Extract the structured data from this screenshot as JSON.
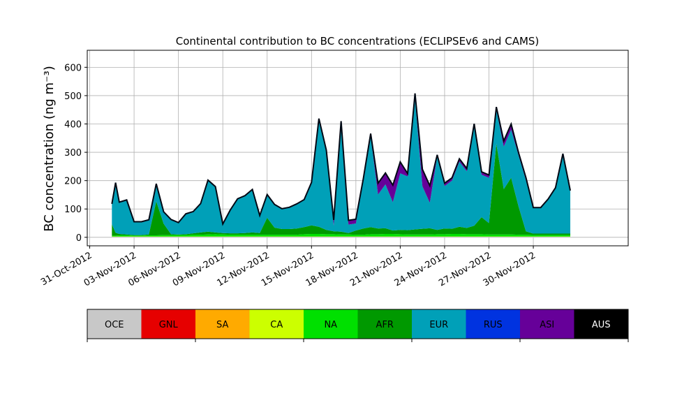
{
  "chart_data": {
    "type": "area",
    "stacked": true,
    "title": "Continental contribution to BC concentrations (ECLIPSEv6 and CAMS)",
    "ylabel": "BC concentration (ng m⁻³)",
    "xlabel": "",
    "grid": true,
    "legend_placement": "bottom colorbar",
    "ylim": [
      -30,
      660
    ],
    "xlim": [
      "2012-10-30T20:00",
      "2012-12-06T10:00"
    ],
    "y_ticks": [
      0,
      100,
      200,
      300,
      400,
      500,
      600
    ],
    "x_ticks": [
      "31-Oct-2012",
      "03-Nov-2012",
      "06-Nov-2012",
      "09-Nov-2012",
      "12-Nov-2012",
      "15-Nov-2012",
      "18-Nov-2012",
      "21-Nov-2012",
      "24-Nov-2012",
      "27-Nov-2012",
      "30-Nov-2012"
    ],
    "x": [
      "2012-11-01T12:00",
      "2012-11-01T18:00",
      "2012-11-02T00:00",
      "2012-11-02T12:00",
      "2012-11-03T00:00",
      "2012-11-03T12:00",
      "2012-11-04T00:00",
      "2012-11-04T12:00",
      "2012-11-05T00:00",
      "2012-11-05T12:00",
      "2012-11-06T00:00",
      "2012-11-06T12:00",
      "2012-11-07T00:00",
      "2012-11-07T12:00",
      "2012-11-08T00:00",
      "2012-11-08T12:00",
      "2012-11-09T00:00",
      "2012-11-09T12:00",
      "2012-11-10T00:00",
      "2012-11-10T12:00",
      "2012-11-11T00:00",
      "2012-11-11T12:00",
      "2012-11-12T00:00",
      "2012-11-12T12:00",
      "2012-11-13T00:00",
      "2012-11-13T12:00",
      "2012-11-14T00:00",
      "2012-11-14T12:00",
      "2012-11-15T00:00",
      "2012-11-15T12:00",
      "2012-11-16T00:00",
      "2012-11-16T12:00",
      "2012-11-17T00:00",
      "2012-11-17T12:00",
      "2012-11-18T00:00",
      "2012-11-18T12:00",
      "2012-11-19T00:00",
      "2012-11-19T12:00",
      "2012-11-20T00:00",
      "2012-11-20T12:00",
      "2012-11-21T00:00",
      "2012-11-21T12:00",
      "2012-11-22T00:00",
      "2012-11-22T12:00",
      "2012-11-23T00:00",
      "2012-11-23T12:00",
      "2012-11-24T00:00",
      "2012-11-24T12:00",
      "2012-11-25T00:00",
      "2012-11-25T12:00",
      "2012-11-26T00:00",
      "2012-11-26T12:00",
      "2012-11-27T00:00",
      "2012-11-27T12:00",
      "2012-11-28T00:00",
      "2012-11-28T12:00",
      "2012-11-29T00:00",
      "2012-11-29T12:00",
      "2012-11-30T00:00",
      "2012-11-30T12:00",
      "2012-12-01T00:00",
      "2012-12-01T12:00",
      "2012-12-02T00:00",
      "2012-12-02T12:00"
    ],
    "series": [
      {
        "name": "OCE",
        "color": "#c8c8c8",
        "values": [
          2,
          2,
          2,
          2,
          2,
          2,
          2,
          2,
          2,
          2,
          2,
          2,
          2,
          2,
          2,
          2,
          2,
          2,
          2,
          2,
          2,
          2,
          2,
          2,
          2,
          2,
          2,
          2,
          2,
          2,
          2,
          2,
          2,
          2,
          2,
          2,
          2,
          2,
          2,
          2,
          2,
          2,
          2,
          2,
          2,
          2,
          2,
          2,
          2,
          2,
          2,
          2,
          2,
          2,
          2,
          2,
          2,
          2,
          2,
          2,
          2,
          2,
          2,
          2
        ]
      },
      {
        "name": "GNL",
        "color": "#e60000",
        "values": [
          0,
          0,
          0,
          0,
          0,
          0,
          0,
          0,
          0,
          0,
          0,
          0,
          0,
          0,
          0,
          0,
          0,
          0,
          0,
          0,
          0,
          0,
          0,
          0,
          0,
          0,
          0,
          0,
          0,
          0,
          0,
          0,
          0,
          0,
          0,
          0,
          0,
          0,
          0,
          0,
          0,
          0,
          0,
          0,
          0,
          0,
          0,
          0,
          0,
          0,
          0,
          0,
          0,
          0,
          0,
          0,
          0,
          0,
          0,
          0,
          0,
          0,
          0,
          0
        ]
      },
      {
        "name": "SA",
        "color": "#ffaa00",
        "values": [
          0,
          0,
          0,
          0,
          0,
          0,
          0,
          0,
          0,
          0,
          0,
          0,
          0,
          0,
          0,
          0,
          0,
          0,
          0,
          0,
          0,
          0,
          0,
          0,
          0,
          0,
          0,
          0,
          0,
          0,
          0,
          0,
          0,
          0,
          0,
          0,
          0,
          0,
          0,
          0,
          0,
          0,
          0,
          0,
          0,
          0,
          0,
          0,
          0,
          0,
          0,
          0,
          0,
          0,
          0,
          0,
          0,
          0,
          0,
          0,
          0,
          0,
          0,
          0
        ]
      },
      {
        "name": "CA",
        "color": "#ccff00",
        "values": [
          1,
          1,
          1,
          1,
          1,
          1,
          1,
          1,
          1,
          1,
          1,
          1,
          1,
          1,
          1,
          1,
          1,
          1,
          1,
          1,
          1,
          1,
          1,
          1,
          1,
          1,
          1,
          1,
          1,
          1,
          1,
          1,
          1,
          1,
          1,
          1,
          1,
          1,
          1,
          1,
          1,
          1,
          1,
          1,
          1,
          1,
          1,
          1,
          1,
          1,
          1,
          1,
          1,
          1,
          1,
          1,
          1,
          1,
          1,
          1,
          1,
          1,
          1,
          1
        ]
      },
      {
        "name": "NA",
        "color": "#00e000",
        "values": [
          3,
          3,
          4,
          4,
          3,
          3,
          4,
          4,
          5,
          5,
          5,
          5,
          6,
          6,
          7,
          8,
          7,
          6,
          6,
          6,
          6,
          6,
          6,
          6,
          6,
          6,
          6,
          8,
          9,
          9,
          8,
          8,
          7,
          7,
          6,
          6,
          8,
          8,
          9,
          9,
          8,
          7,
          7,
          7,
          7,
          8,
          8,
          9,
          9,
          8,
          8,
          8,
          7,
          7,
          7,
          7,
          6,
          6,
          5,
          5,
          5,
          5,
          5,
          5
        ]
      },
      {
        "name": "AFR",
        "color": "#009900",
        "values": [
          40,
          10,
          5,
          3,
          2,
          2,
          3,
          120,
          40,
          3,
          2,
          3,
          5,
          8,
          10,
          6,
          5,
          5,
          5,
          6,
          8,
          6,
          60,
          25,
          20,
          20,
          22,
          25,
          30,
          25,
          15,
          10,
          10,
          5,
          15,
          22,
          25,
          20,
          20,
          12,
          15,
          15,
          18,
          20,
          22,
          15,
          20,
          18,
          25,
          22,
          30,
          60,
          40,
          320,
          160,
          200,
          100,
          12,
          5,
          5,
          5,
          5,
          5,
          5
        ]
      },
      {
        "name": "EUR",
        "color": "#00a0b8",
        "values": [
          70,
          175,
          110,
          120,
          45,
          45,
          50,
          60,
          40,
          50,
          40,
          70,
          75,
          100,
          180,
          160,
          30,
          80,
          120,
          130,
          150,
          60,
          80,
          80,
          70,
          75,
          85,
          95,
          150,
          380,
          280,
          20,
          370,
          30,
          25,
          170,
          320,
          120,
          155,
          100,
          200,
          190,
          460,
          150,
          90,
          260,
          150,
          170,
          230,
          200,
          350,
          150,
          160,
          120,
          150,
          170,
          180,
          180,
          90,
          90,
          120,
          160,
          280,
          150
        ]
      },
      {
        "name": "RUS",
        "color": "#0033e0",
        "values": [
          0,
          0,
          0,
          0,
          0,
          0,
          0,
          0,
          0,
          0,
          0,
          0,
          0,
          0,
          0,
          0,
          0,
          0,
          0,
          0,
          0,
          0,
          0,
          0,
          0,
          0,
          0,
          0,
          0,
          0,
          0,
          0,
          0,
          0,
          0,
          0,
          0,
          0,
          0,
          0,
          0,
          0,
          0,
          0,
          0,
          0,
          0,
          0,
          0,
          0,
          0,
          0,
          0,
          0,
          0,
          0,
          0,
          0,
          0,
          0,
          0,
          0,
          0,
          0
        ]
      },
      {
        "name": "ASI",
        "color": "#660099",
        "values": [
          2,
          2,
          2,
          2,
          2,
          2,
          2,
          2,
          2,
          2,
          2,
          2,
          2,
          2,
          2,
          2,
          2,
          2,
          2,
          2,
          2,
          2,
          2,
          2,
          2,
          2,
          2,
          2,
          2,
          2,
          2,
          20,
          20,
          15,
          15,
          5,
          10,
          40,
          40,
          60,
          40,
          10,
          20,
          60,
          60,
          5,
          10,
          10,
          10,
          10,
          10,
          10,
          10,
          10,
          20,
          20,
          10,
          10,
          2,
          2,
          2,
          2,
          2,
          2
        ]
      },
      {
        "name": "AUS",
        "color": "#000000",
        "values": [
          0,
          0,
          0,
          0,
          0,
          0,
          0,
          0,
          0,
          0,
          0,
          0,
          0,
          0,
          0,
          0,
          0,
          0,
          0,
          0,
          0,
          0,
          0,
          0,
          0,
          0,
          0,
          0,
          0,
          0,
          0,
          0,
          0,
          0,
          0,
          0,
          0,
          0,
          0,
          0,
          0,
          0,
          0,
          0,
          0,
          0,
          0,
          0,
          0,
          0,
          0,
          0,
          0,
          0,
          0,
          0,
          0,
          0,
          0,
          0,
          0,
          0,
          0,
          0
        ]
      }
    ],
    "legend": [
      "OCE",
      "GNL",
      "SA",
      "CA",
      "NA",
      "AFR",
      "EUR",
      "RUS",
      "ASI",
      "AUS"
    ],
    "legend_text_colors": [
      "#000000",
      "#000000",
      "#000000",
      "#000000",
      "#000000",
      "#000000",
      "#000000",
      "#000000",
      "#000000",
      "#ffffff"
    ]
  }
}
